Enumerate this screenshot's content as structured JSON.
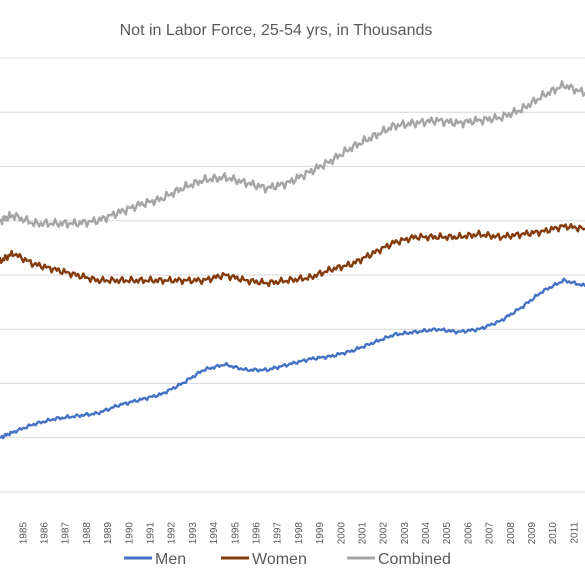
{
  "chart_data": {
    "type": "line",
    "title": "Not in Labor Force, 25-54 yrs, in Thousands",
    "xlabel": "",
    "ylabel": "",
    "x_tick_labels": [
      "1985",
      "1986",
      "1987",
      "1988",
      "1989",
      "1990",
      "1991",
      "1992",
      "1993",
      "1994",
      "1995",
      "1996",
      "1997",
      "1998",
      "1999",
      "2000",
      "2001",
      "2002",
      "2003",
      "2004",
      "2005",
      "2006",
      "2007",
      "2008",
      "2009",
      "2010",
      "2011"
    ],
    "xlim": [
      1984.4,
      2012.0
    ],
    "ylim": [
      0,
      8
    ],
    "grid": true,
    "legend_position": "bottom",
    "series": [
      {
        "name": "Men",
        "color": "#4472c4",
        "points": [
          [
            1984.4,
            1.0
          ],
          [
            1985,
            1.1
          ],
          [
            1986,
            1.25
          ],
          [
            1987,
            1.35
          ],
          [
            1988,
            1.4
          ],
          [
            1989,
            1.45
          ],
          [
            1990,
            1.6
          ],
          [
            1991,
            1.7
          ],
          [
            1992,
            1.8
          ],
          [
            1993,
            2.0
          ],
          [
            1994,
            2.25
          ],
          [
            1995,
            2.35
          ],
          [
            1996,
            2.25
          ],
          [
            1997,
            2.25
          ],
          [
            1998,
            2.35
          ],
          [
            1999,
            2.45
          ],
          [
            2000,
            2.5
          ],
          [
            2001,
            2.6
          ],
          [
            2002,
            2.75
          ],
          [
            2003,
            2.9
          ],
          [
            2004,
            2.95
          ],
          [
            2005,
            3.0
          ],
          [
            2006,
            2.95
          ],
          [
            2007,
            3.0
          ],
          [
            2008,
            3.15
          ],
          [
            2009,
            3.4
          ],
          [
            2010,
            3.7
          ],
          [
            2011,
            3.9
          ],
          [
            2012,
            3.8
          ]
        ]
      },
      {
        "name": "Women",
        "color": "#843c0c",
        "points": [
          [
            1984.4,
            4.25
          ],
          [
            1985,
            4.4
          ],
          [
            1986,
            4.2
          ],
          [
            1987,
            4.1
          ],
          [
            1988,
            4.0
          ],
          [
            1989,
            3.9
          ],
          [
            1990,
            3.9
          ],
          [
            1991,
            3.9
          ],
          [
            1992,
            3.9
          ],
          [
            1993,
            3.9
          ],
          [
            1994,
            3.9
          ],
          [
            1995,
            4.0
          ],
          [
            1996,
            3.9
          ],
          [
            1997,
            3.85
          ],
          [
            1998,
            3.9
          ],
          [
            1999,
            3.95
          ],
          [
            2000,
            4.1
          ],
          [
            2001,
            4.2
          ],
          [
            2002,
            4.4
          ],
          [
            2003,
            4.6
          ],
          [
            2004,
            4.7
          ],
          [
            2005,
            4.7
          ],
          [
            2006,
            4.7
          ],
          [
            2007,
            4.75
          ],
          [
            2008,
            4.7
          ],
          [
            2009,
            4.75
          ],
          [
            2010,
            4.8
          ],
          [
            2011,
            4.9
          ],
          [
            2012,
            4.85
          ]
        ]
      },
      {
        "name": "Combined",
        "color": "#a5a5a5",
        "points": [
          [
            1984.4,
            5.0
          ],
          [
            1985,
            5.1
          ],
          [
            1986,
            4.95
          ],
          [
            1987,
            4.95
          ],
          [
            1988,
            4.95
          ],
          [
            1989,
            5.0
          ],
          [
            1990,
            5.15
          ],
          [
            1991,
            5.3
          ],
          [
            1992,
            5.4
          ],
          [
            1993,
            5.6
          ],
          [
            1994,
            5.75
          ],
          [
            1995,
            5.8
          ],
          [
            1996,
            5.7
          ],
          [
            1997,
            5.6
          ],
          [
            1998,
            5.7
          ],
          [
            1999,
            5.9
          ],
          [
            2000,
            6.1
          ],
          [
            2001,
            6.35
          ],
          [
            2002,
            6.55
          ],
          [
            2003,
            6.75
          ],
          [
            2004,
            6.8
          ],
          [
            2005,
            6.85
          ],
          [
            2006,
            6.8
          ],
          [
            2007,
            6.85
          ],
          [
            2008,
            6.9
          ],
          [
            2009,
            7.05
          ],
          [
            2010,
            7.3
          ],
          [
            2011,
            7.5
          ],
          [
            2012,
            7.35
          ]
        ]
      }
    ]
  }
}
